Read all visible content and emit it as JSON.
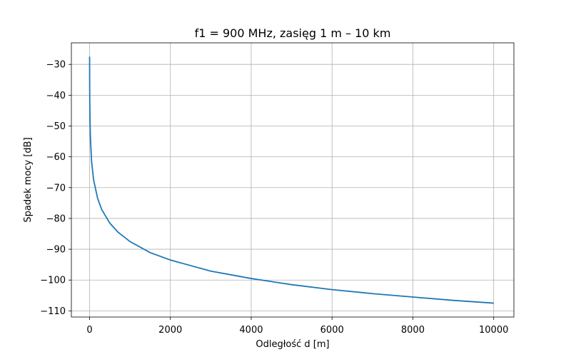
{
  "chart_data": {
    "type": "line",
    "title": "f1 = 900 MHz, zasięg 1 m – 10 km",
    "xlabel": "Odległość d [m]",
    "ylabel": "Spadek mocy [dB]",
    "xlim": [
      -450,
      10500
    ],
    "ylim": [
      -112,
      -23
    ],
    "x_ticks": [
      0,
      2000,
      4000,
      6000,
      8000,
      10000
    ],
    "x_tick_labels": [
      "0",
      "2000",
      "4000",
      "6000",
      "8000",
      "10000"
    ],
    "y_ticks": [
      -30,
      -40,
      -50,
      -60,
      -70,
      -80,
      -90,
      -100,
      -110
    ],
    "y_tick_labels": [
      "−30",
      "−40",
      "−50",
      "−60",
      "−70",
      "−80",
      "−90",
      "−100",
      "−110"
    ],
    "grid": true,
    "colors": {
      "line": "#1f77b4"
    },
    "series": [
      {
        "x": [
          1,
          2,
          5,
          10,
          20,
          50,
          100,
          200,
          300,
          500,
          700,
          1000,
          1500,
          2000,
          3000,
          4000,
          5000,
          6000,
          7000,
          8000,
          9000,
          10000
        ],
        "y": [
          -27.5,
          -33.5,
          -41.5,
          -47.5,
          -53.5,
          -61.5,
          -67.5,
          -73.5,
          -77.1,
          -81.5,
          -84.4,
          -87.5,
          -91.1,
          -93.5,
          -97.1,
          -99.5,
          -101.5,
          -103.1,
          -104.4,
          -105.5,
          -106.6,
          -107.5
        ]
      }
    ]
  }
}
